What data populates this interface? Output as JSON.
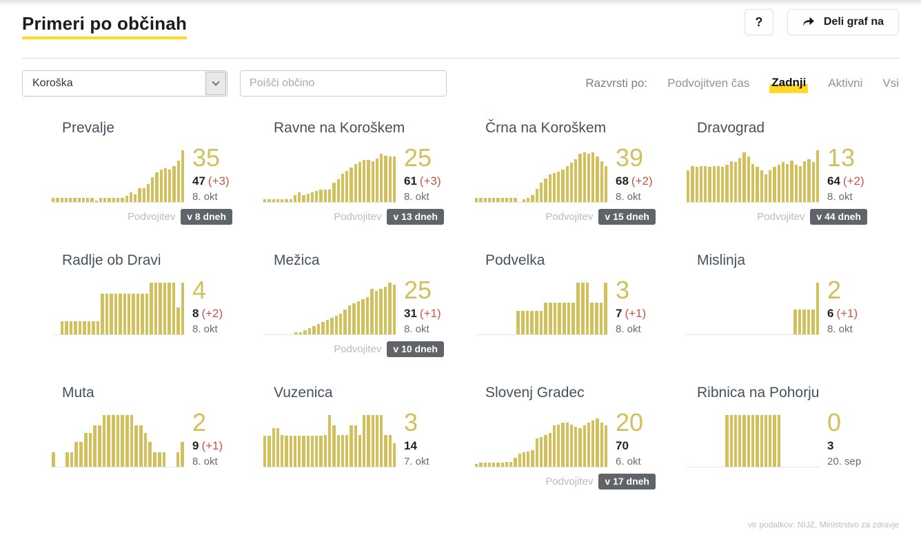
{
  "page": {
    "title": "Primeri po občinah"
  },
  "header": {
    "help_button": "?",
    "share_button": "Deli graf na"
  },
  "filters": {
    "region": {
      "value": "Koroška"
    },
    "search": {
      "placeholder": "Poišči občino"
    },
    "sort": {
      "label": "Razvrsti po:",
      "options": [
        {
          "label": "Podvojitven čas",
          "selected": false
        },
        {
          "label": "Zadnji",
          "selected": true
        },
        {
          "label": "Aktivni",
          "selected": false
        },
        {
          "label": "Vsi",
          "selected": false
        }
      ]
    }
  },
  "labels": {
    "doubling": "Podvojitev"
  },
  "colors": {
    "accent_yellow": "#ffd922",
    "bar_gold": "#d2c05c",
    "delta_red": "#bf5747",
    "badge_bg": "#5f6468",
    "title_gray_blue": "#44525f"
  },
  "chart_data": {
    "type": "bar",
    "note": "per-municipality sparklines, values are relative bar heights in percent, see cards[].bars"
  },
  "cards": [
    {
      "name": "Prevalje",
      "active": "35",
      "total": "47",
      "delta": "(+3)",
      "date": "8. okt",
      "doubling": "v 8 dneh",
      "bars": [
        8,
        8,
        8,
        8,
        8,
        8,
        8,
        8,
        8,
        8,
        3,
        8,
        8,
        8,
        8,
        8,
        8,
        12,
        19,
        15,
        27,
        27,
        35,
        48,
        57,
        63,
        66,
        63,
        70,
        80,
        100
      ]
    },
    {
      "name": "Ravne na Koroškem",
      "active": "25",
      "total": "61",
      "delta": "(+3)",
      "date": "8. okt",
      "doubling": "v 13 dneh",
      "bars": [
        5,
        5,
        5,
        5,
        5,
        5,
        5,
        13,
        19,
        13,
        16,
        19,
        21,
        24,
        24,
        24,
        37,
        44,
        55,
        60,
        67,
        73,
        78,
        81,
        81,
        79,
        84,
        93,
        90,
        88,
        88
      ]
    },
    {
      "name": "Črna na Koroškem",
      "active": "39",
      "total": "68",
      "delta": "(+2)",
      "date": "8. okt",
      "doubling": "v 15 dneh",
      "bars": [
        8,
        8,
        8,
        8,
        8,
        8,
        8,
        8,
        8,
        8,
        0,
        5,
        8,
        14,
        26,
        38,
        46,
        53,
        56,
        59,
        63,
        69,
        76,
        83,
        93,
        96,
        93,
        96,
        88,
        79,
        69
      ]
    },
    {
      "name": "Dravograd",
      "active": "13",
      "total": "64",
      "delta": "(+2)",
      "date": "8. okt",
      "doubling": "v 44 dneh",
      "bars": [
        62,
        70,
        68,
        70,
        70,
        68,
        70,
        70,
        68,
        72,
        79,
        77,
        86,
        96,
        88,
        74,
        68,
        62,
        53,
        62,
        68,
        72,
        78,
        74,
        80,
        72,
        70,
        79,
        83,
        78,
        100
      ]
    },
    {
      "name": "Radlje ob Dravi",
      "active": "4",
      "total": "8",
      "delta": "(+2)",
      "date": "8. okt",
      "doubling": null,
      "bars": [
        0,
        0,
        26,
        26,
        26,
        26,
        26,
        26,
        26,
        26,
        26,
        79,
        79,
        79,
        79,
        79,
        79,
        79,
        79,
        79,
        79,
        79,
        100,
        100,
        100,
        100,
        100,
        100,
        52,
        100
      ]
    },
    {
      "name": "Mežica",
      "active": "25",
      "total": "31",
      "delta": "(+1)",
      "date": "8. okt",
      "doubling": "v 10 dneh",
      "bars": [
        0,
        0,
        0,
        0,
        0,
        0,
        0,
        4,
        4,
        8,
        12,
        16,
        20,
        24,
        28,
        32,
        36,
        40,
        48,
        56,
        60,
        64,
        68,
        72,
        88,
        84,
        88,
        92,
        100,
        96
      ]
    },
    {
      "name": "Podvelka",
      "active": "3",
      "total": "7",
      "delta": "(+1)",
      "date": "8. okt",
      "doubling": null,
      "bars": [
        0,
        0,
        0,
        0,
        0,
        0,
        0,
        0,
        0,
        45,
        45,
        45,
        45,
        45,
        45,
        62,
        62,
        62,
        62,
        62,
        62,
        62,
        100,
        100,
        100,
        62,
        62,
        62,
        100
      ]
    },
    {
      "name": "Mislinja",
      "active": "2",
      "total": "6",
      "delta": "(+1)",
      "date": "8. okt",
      "doubling": null,
      "bars": [
        0,
        0,
        0,
        0,
        0,
        0,
        0,
        0,
        0,
        0,
        0,
        0,
        0,
        0,
        0,
        0,
        0,
        0,
        0,
        0,
        0,
        0,
        0,
        0,
        48,
        48,
        48,
        48,
        48,
        100
      ]
    },
    {
      "name": "Muta",
      "active": "2",
      "total": "9",
      "delta": "(+1)",
      "date": "8. okt",
      "doubling": null,
      "bars": [
        28,
        0,
        0,
        28,
        28,
        48,
        48,
        65,
        65,
        80,
        80,
        100,
        100,
        100,
        100,
        100,
        100,
        100,
        80,
        80,
        65,
        48,
        28,
        28,
        28,
        0,
        0,
        28,
        48
      ]
    },
    {
      "name": "Vuzenica",
      "active": "3",
      "total": "14",
      "delta": null,
      "date": "7. okt",
      "doubling": null,
      "bars": [
        60,
        60,
        75,
        75,
        62,
        60,
        60,
        60,
        60,
        60,
        60,
        60,
        60,
        60,
        62,
        100,
        80,
        62,
        62,
        62,
        80,
        80,
        62,
        100,
        100,
        100,
        100,
        100,
        62,
        62,
        45
      ]
    },
    {
      "name": "Slovenj Gradec",
      "active": "20",
      "total": "70",
      "delta": null,
      "date": "6. okt",
      "doubling": "v 17 dneh",
      "bars": [
        5,
        8,
        8,
        8,
        8,
        8,
        8,
        10,
        10,
        18,
        25,
        28,
        30,
        32,
        55,
        58,
        62,
        65,
        80,
        82,
        85,
        85,
        82,
        78,
        75,
        80,
        85,
        90,
        93,
        85,
        80
      ]
    },
    {
      "name": "Ribnica na Pohorju",
      "active": "0",
      "total": "3",
      "delta": null,
      "date": "20. sep",
      "doubling": null,
      "bars": [
        0,
        0,
        0,
        0,
        0,
        0,
        0,
        0,
        0,
        100,
        100,
        100,
        100,
        100,
        100,
        100,
        100,
        100,
        100,
        100,
        100,
        100,
        0,
        0,
        0,
        0,
        0,
        0,
        0,
        0,
        0
      ]
    }
  ],
  "footer": {
    "source": "vir podatkov: NIJZ, Ministrstvo za zdravje"
  }
}
